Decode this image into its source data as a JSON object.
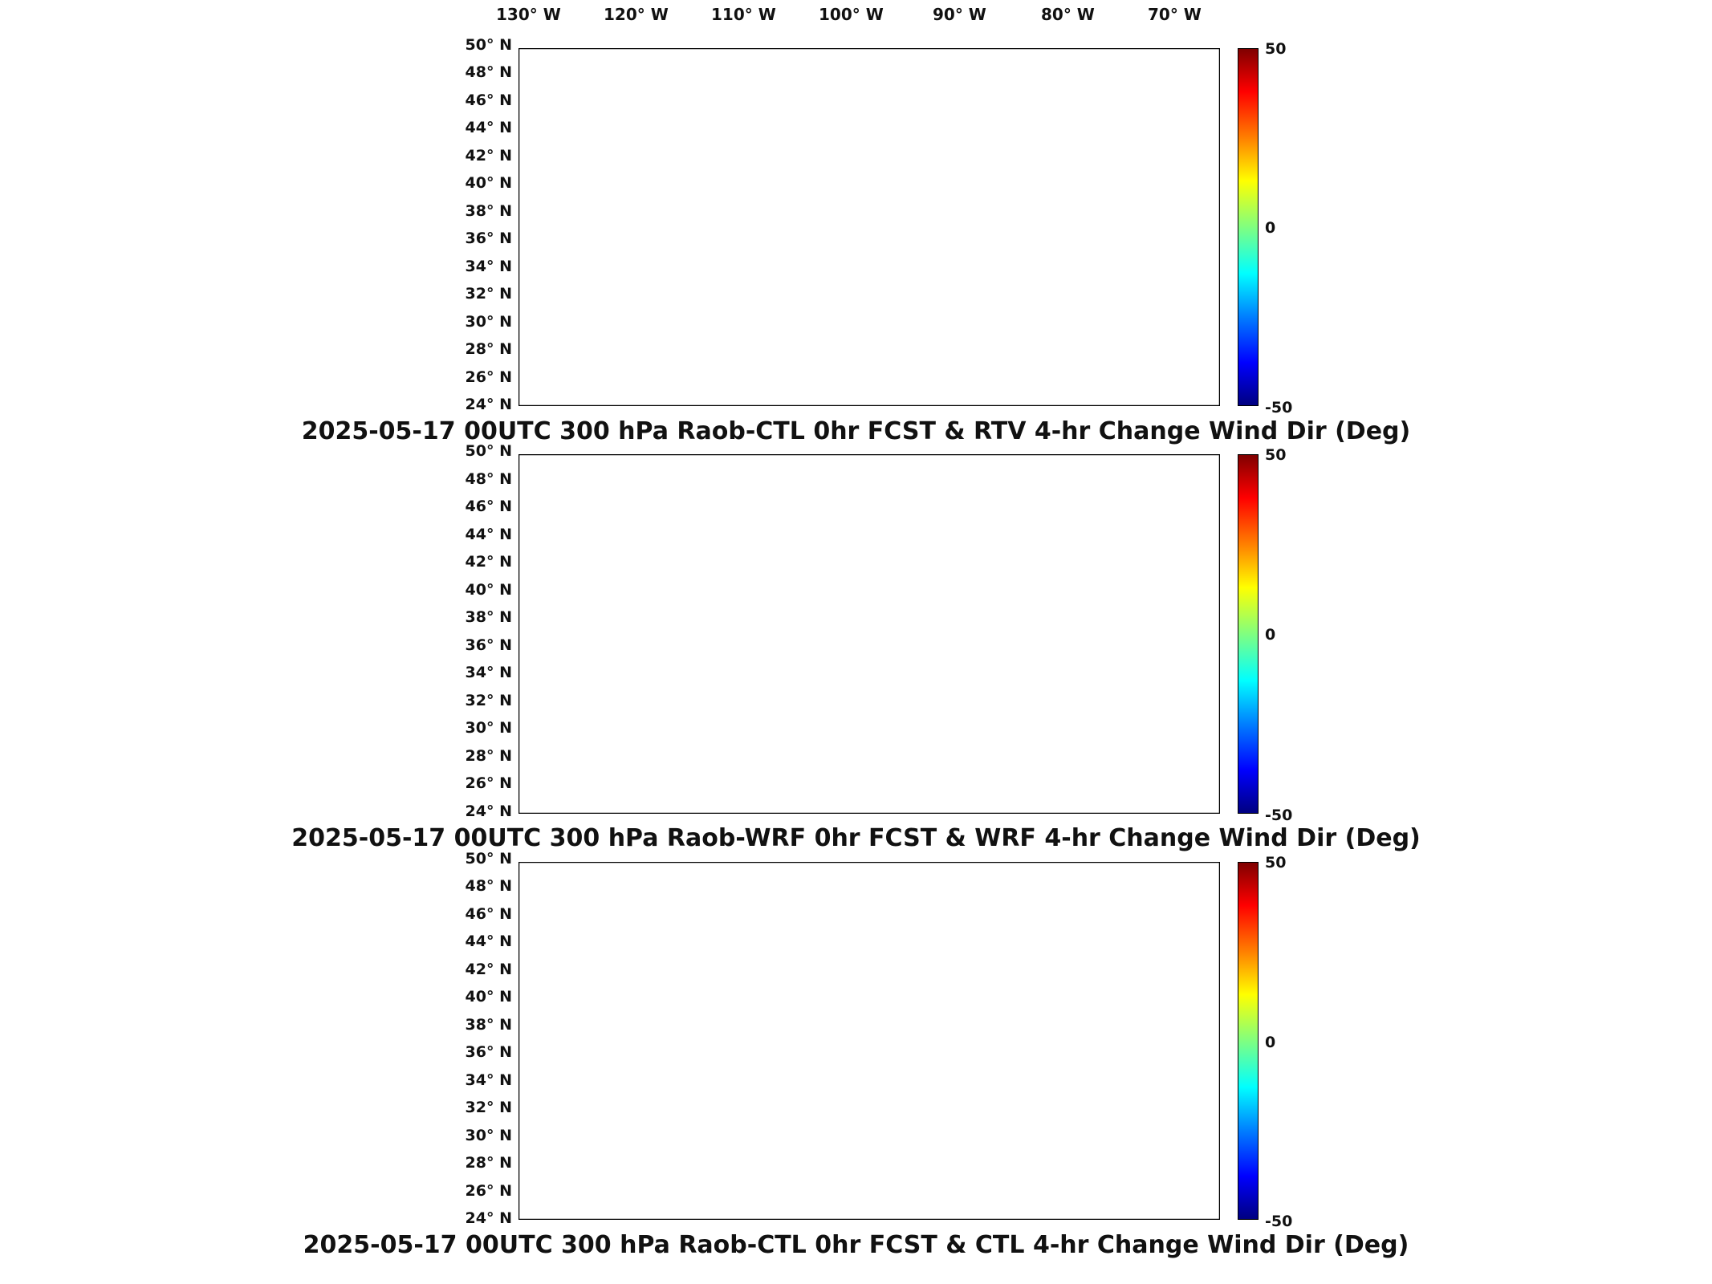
{
  "longitude_labels": [
    "130° W",
    "120° W",
    "110° W",
    "100° W",
    "90° W",
    "80° W",
    "70° W"
  ],
  "latitude_labels": [
    "50° N",
    "48° N",
    "46° N",
    "44° N",
    "42° N",
    "40° N",
    "38° N",
    "36° N",
    "34° N",
    "32° N",
    "30° N",
    "28° N",
    "26° N",
    "24° N"
  ],
  "colorbar": {
    "max_label": "50",
    "mid_label": "0",
    "min_label": "-50",
    "colormap": "jet"
  },
  "panels": [
    {
      "title": "2025-05-17 00UTC 300 hPa Raob-CTL 0hr FCST & RTV 4-hr Change Wind Dir (Deg)"
    },
    {
      "title": "2025-05-17 00UTC 300 hPa Raob-WRF 0hr FCST & WRF 4-hr Change Wind Dir (Deg)"
    },
    {
      "title": "2025-05-17 00UTC 300 hPa Raob-CTL 0hr FCST & CTL 4-hr Change Wind Dir (Deg)"
    }
  ],
  "colors": {
    "positive": "#b00000",
    "zero": "#8cf08c",
    "negative": "#00008f",
    "background": "#ffffff"
  }
}
